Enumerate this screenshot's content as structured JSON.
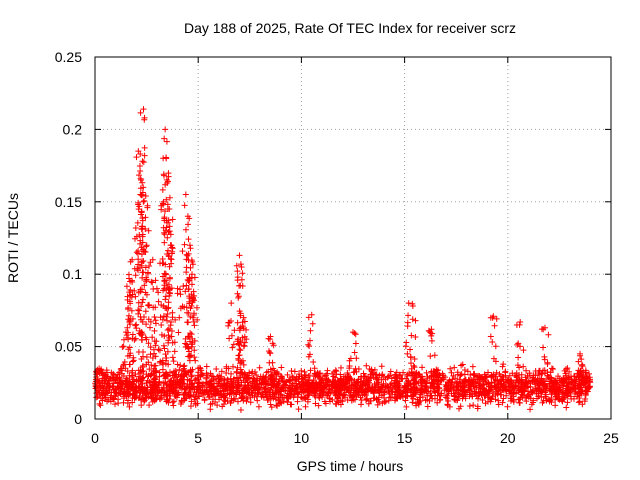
{
  "chart_data": {
    "type": "scatter",
    "title": "Day 188 of 2025, Rate Of TEC Index for receiver scrz",
    "xlabel": "GPS time / hours",
    "ylabel": "ROTI / TECUs",
    "xlim": [
      0,
      25
    ],
    "ylim": [
      0,
      0.25
    ],
    "xticks": [
      0,
      5,
      10,
      15,
      20,
      25
    ],
    "yticks": [
      0,
      0.05,
      0.1,
      0.15,
      0.2,
      0.25
    ],
    "xtick_labels": [
      "0",
      "5",
      "10",
      "15",
      "20",
      "25"
    ],
    "ytick_labels": [
      "0",
      "0.05",
      "0.1",
      "0.15",
      "0.2",
      "0.25"
    ],
    "grid": true,
    "marker": "+",
    "color": "#ff0000",
    "series": [
      {
        "name": "ROTI",
        "x_range": [
          0,
          24
        ],
        "baseline_band": [
          0.005,
          0.035
        ],
        "notable_points": [
          {
            "x": 0.2,
            "y": 0.035
          },
          {
            "x": 1.5,
            "y": 0.06
          },
          {
            "x": 1.7,
            "y": 0.095
          },
          {
            "x": 1.8,
            "y": 0.11
          },
          {
            "x": 2.1,
            "y": 0.185
          },
          {
            "x": 2.2,
            "y": 0.155
          },
          {
            "x": 2.3,
            "y": 0.178
          },
          {
            "x": 2.35,
            "y": 0.214
          },
          {
            "x": 2.4,
            "y": 0.208
          },
          {
            "x": 2.6,
            "y": 0.13
          },
          {
            "x": 2.8,
            "y": 0.11
          },
          {
            "x": 3.0,
            "y": 0.09
          },
          {
            "x": 3.3,
            "y": 0.148
          },
          {
            "x": 3.4,
            "y": 0.2
          },
          {
            "x": 3.45,
            "y": 0.18
          },
          {
            "x": 3.5,
            "y": 0.163
          },
          {
            "x": 3.6,
            "y": 0.145
          },
          {
            "x": 3.7,
            "y": 0.12
          },
          {
            "x": 4.0,
            "y": 0.09
          },
          {
            "x": 4.4,
            "y": 0.155
          },
          {
            "x": 4.5,
            "y": 0.14
          },
          {
            "x": 4.6,
            "y": 0.12
          },
          {
            "x": 4.7,
            "y": 0.1
          },
          {
            "x": 4.8,
            "y": 0.085
          },
          {
            "x": 6.6,
            "y": 0.08
          },
          {
            "x": 7.0,
            "y": 0.113
          },
          {
            "x": 7.1,
            "y": 0.105
          },
          {
            "x": 7.2,
            "y": 0.07
          },
          {
            "x": 8.5,
            "y": 0.057
          },
          {
            "x": 10.5,
            "y": 0.072
          },
          {
            "x": 12.5,
            "y": 0.06
          },
          {
            "x": 15.2,
            "y": 0.08
          },
          {
            "x": 15.4,
            "y": 0.078
          },
          {
            "x": 16.3,
            "y": 0.062
          },
          {
            "x": 19.3,
            "y": 0.071
          },
          {
            "x": 20.6,
            "y": 0.067
          },
          {
            "x": 21.8,
            "y": 0.063
          },
          {
            "x": 23.5,
            "y": 0.045
          }
        ]
      }
    ]
  }
}
